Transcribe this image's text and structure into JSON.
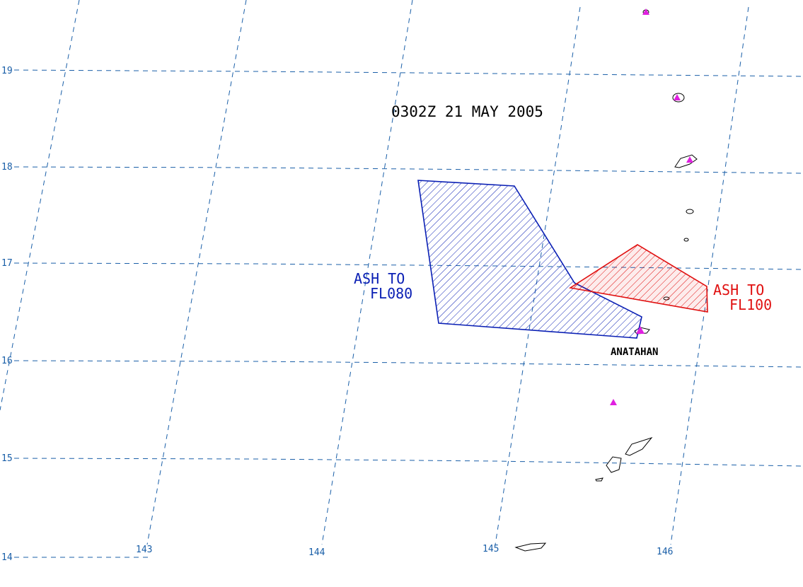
{
  "title": "0302Z 21 MAY 2005",
  "latitudes": [
    "19",
    "18",
    "17",
    "16",
    "15",
    "14"
  ],
  "longitudes": [
    "143",
    "144",
    "145",
    "146"
  ],
  "ash_areas": [
    {
      "line1": "ASH TO",
      "line2": "FL080",
      "color": "#0a1fb4"
    },
    {
      "line1": "ASH TO",
      "line2": "FL100",
      "color": "#e01010"
    }
  ],
  "volcano_label": "ANATAHAN",
  "volcano_icon": "triangle-icon",
  "colors": {
    "grid": "#1a5fa8",
    "volcano": "#e020e0",
    "coast": "#000000"
  }
}
